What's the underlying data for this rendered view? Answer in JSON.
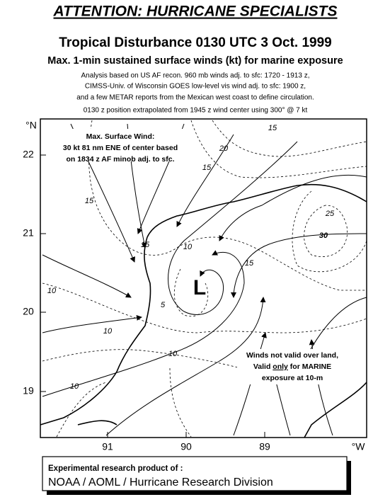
{
  "header": {
    "alert": "ATTENTION: HURRICANE SPECIALISTS",
    "title": "Tropical Disturbance 0130 UTC 3 Oct. 1999",
    "subtitle": "Max. 1-min sustained surface winds (kt) for marine exposure",
    "notes": [
      "Analysis based on US AF recon. 960 mb winds adj. to sfc: 1720 - 1913 z,",
      "CIMSS-Univ. of Wisconsin GOES low-level vis wind adj. to sfc: 1900 z,",
      "and a few METAR reports from the Mexican west coast to define circulation.",
      "0130 z position extrapolated from 1945 z wind center using 300° @ 7 kt"
    ]
  },
  "map": {
    "lat_unit": "°N",
    "lat_labels": [
      "22",
      "21",
      "20",
      "19"
    ],
    "lon_labels": [
      "91",
      "90",
      "89"
    ],
    "lon_unit": "°W",
    "center_label": "L",
    "contour_labels": [
      "15",
      "20",
      "15",
      "15",
      "25",
      "30",
      "15",
      "10",
      "15",
      "10",
      "5",
      "10",
      "10",
      "10"
    ],
    "max_wind_note": [
      "Max. Surface Wind:",
      "30 kt 81 nm ENE of center based",
      "on 1834 z AF minob adj. to sfc."
    ],
    "validity_note": [
      "Winds not valid over land,",
      [
        "Valid ",
        "only",
        " for MARINE"
      ],
      "exposure at 10-m"
    ]
  },
  "footer": {
    "line1": "Experimental research product of :",
    "line2": "NOAA / AOML / Hurricane Research Division"
  }
}
